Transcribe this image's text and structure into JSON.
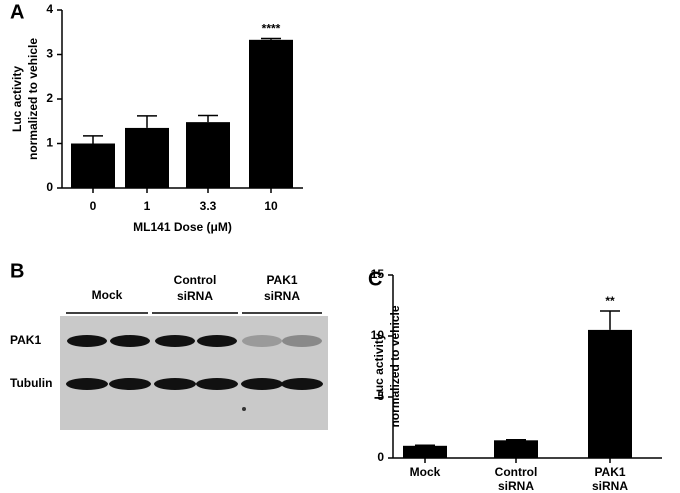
{
  "chart_data": [
    {
      "type": "bar",
      "panel": "A",
      "y_label": [
        "Luc activity",
        "normalized to vehicle"
      ],
      "x_label": "ML141 Dose (μM)",
      "categories": [
        [
          "0"
        ],
        [
          "1"
        ],
        [
          "3.3"
        ],
        [
          "10"
        ]
      ],
      "values": [
        1.0,
        1.35,
        1.48,
        3.33
      ],
      "errors": [
        0.17,
        0.27,
        0.15,
        0.03
      ],
      "annotation": "****",
      "color": "#000000",
      "ylim": [
        0,
        4
      ],
      "yticks": [
        0,
        1,
        2,
        3,
        4
      ]
    },
    {
      "type": "bar",
      "panel": "C",
      "y_label": [
        "Luc activity",
        "normalized to vehicle"
      ],
      "categories": [
        [
          "Mock"
        ],
        [
          "Control",
          "siRNA"
        ],
        [
          "PAK1",
          "siRNA"
        ]
      ],
      "values": [
        1.0,
        1.45,
        10.5
      ],
      "errors": [
        0.05,
        0.05,
        1.55
      ],
      "annotation": "**",
      "color": "#000000",
      "ylim": [
        0,
        15
      ],
      "yticks": [
        0,
        5,
        10,
        15
      ]
    }
  ],
  "blot": {
    "panel": "B",
    "groups": [
      [
        "Mock"
      ],
      [
        "Control",
        "siRNA"
      ],
      [
        "PAK1",
        "siRNA"
      ]
    ],
    "rows": [
      "PAK1",
      "Tubulin"
    ]
  }
}
